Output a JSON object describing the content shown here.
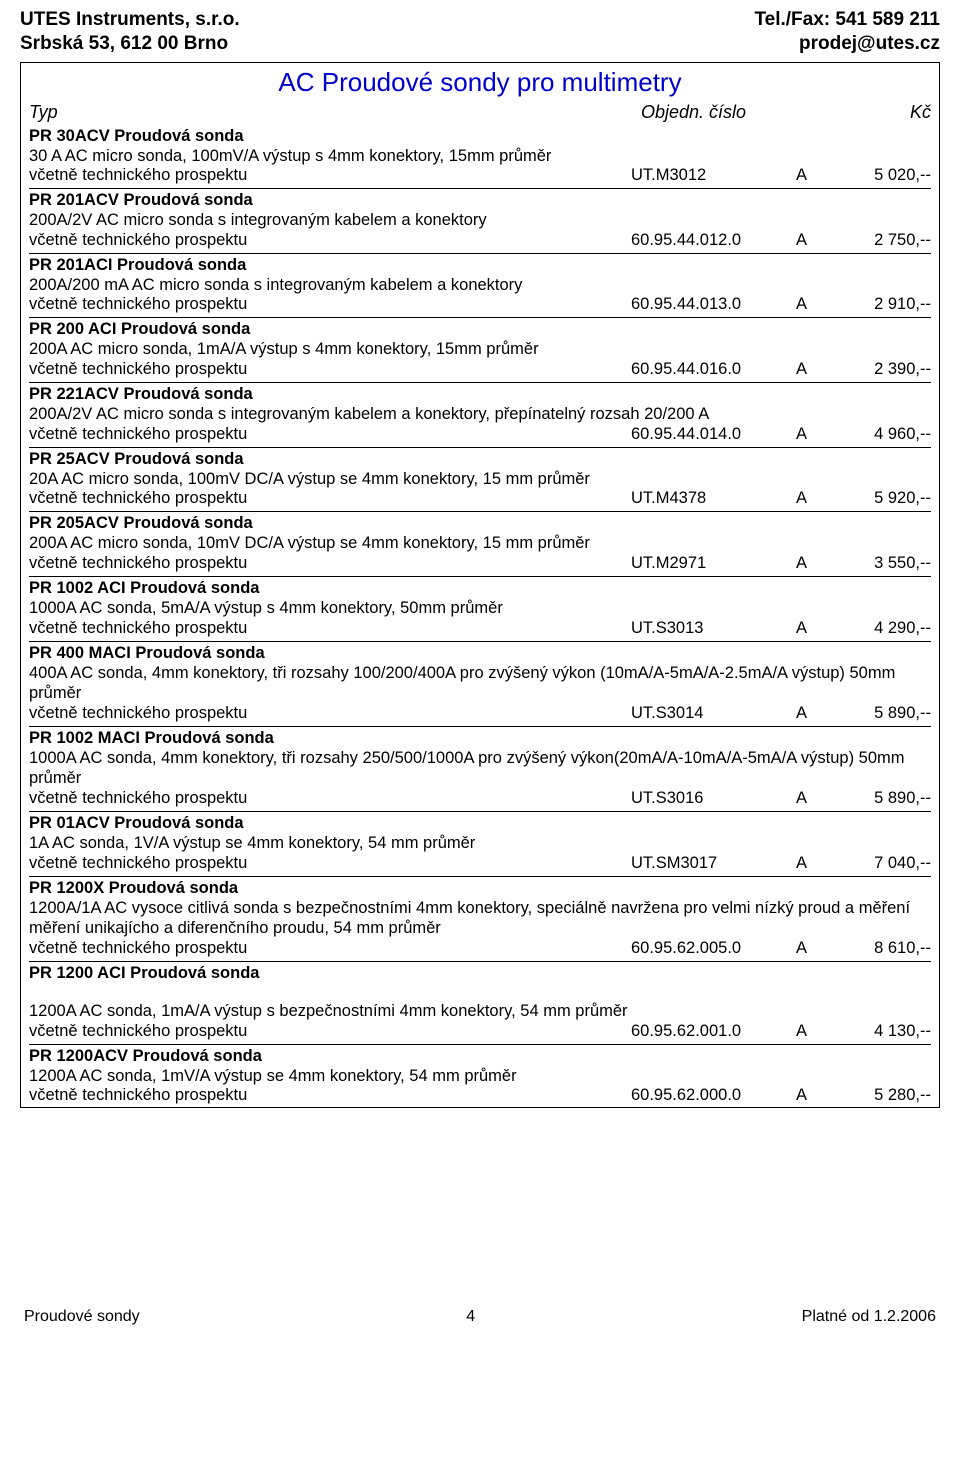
{
  "header": {
    "company_name": "UTES Instruments, s.r.o.",
    "company_addr": "Srbská 53, 612 00 Brno",
    "tel_label": "Tel./Fax: 541 589 211",
    "email": "prodej@utes.cz"
  },
  "title": "AC Proudové sondy pro multimetry",
  "columns": {
    "typ": "Typ",
    "obj": "Objedn. číslo",
    "kc": "Kč"
  },
  "note_text": "včetně technického prospektu",
  "products": [
    {
      "name": "PR 30ACV Proudová sonda",
      "desc": "30 A AC micro sonda, 100mV/A výstup s 4mm konektory, 15mm průměr",
      "obj": "UT.M3012",
      "stock": "A",
      "price": "5 020,--"
    },
    {
      "name": "PR 201ACV Proudová sonda",
      "desc": "200A/2V AC micro sonda s integrovaným kabelem a konektory",
      "obj": "60.95.44.012.0",
      "stock": "A",
      "price": "2 750,--"
    },
    {
      "name": "PR 201ACI Proudová sonda",
      "desc": "200A/200 mA AC micro sonda s integrovaným kabelem a konektory",
      "obj": "60.95.44.013.0",
      "stock": "A",
      "price": "2 910,--"
    },
    {
      "name": "PR 200 ACI Proudová sonda",
      "desc": "200A AC micro sonda, 1mA/A výstup s 4mm konektory, 15mm průměr",
      "obj": "60.95.44.016.0",
      "stock": "A",
      "price": "2 390,--"
    },
    {
      "name": "PR 221ACV Proudová sonda",
      "desc": "200A/2V AC micro sonda s integrovaným kabelem a konektory, přepínatelný rozsah 20/200 A",
      "obj": "60.95.44.014.0",
      "stock": "A",
      "price": "4 960,--"
    },
    {
      "name": "PR 25ACV Proudová sonda",
      "desc": "20A AC micro sonda, 100mV DC/A výstup se 4mm konektory, 15 mm průměr",
      "obj": "UT.M4378",
      "stock": "A",
      "price": "5 920,--"
    },
    {
      "name": "PR 205ACV Proudová sonda",
      "desc": "200A AC micro sonda, 10mV DC/A výstup se 4mm konektory, 15 mm průměr",
      "obj": "UT.M2971",
      "stock": "A",
      "price": "3 550,--"
    },
    {
      "name": "PR 1002 ACI Proudová sonda",
      "desc": "1000A AC sonda, 5mA/A výstup s 4mm konektory, 50mm průměr",
      "obj": "UT.S3013",
      "stock": "A",
      "price": "4 290,--"
    },
    {
      "name": "PR 400 MACI Proudová sonda",
      "desc": "400A AC sonda, 4mm konektory, tři rozsahy 100/200/400A pro zvýšený výkon (10mA/A-5mA/A-2.5mA/A výstup) 50mm průměr",
      "obj": "UT.S3014",
      "stock": "A",
      "price": "5 890,--"
    },
    {
      "name": "PR 1002 MACI Proudová sonda",
      "desc": "1000A AC sonda, 4mm konektory, tři rozsahy 250/500/1000A pro zvýšený výkon(20mA/A-10mA/A-5mA/A výstup) 50mm průměr",
      "obj": "UT.S3016",
      "stock": "A",
      "price": "5 890,--"
    },
    {
      "name": "PR 01ACV Proudová sonda",
      "desc": "1A AC sonda, 1V/A výstup se 4mm konektory, 54 mm průměr",
      "obj": "UT.SM3017",
      "stock": "A",
      "price": "7 040,--"
    },
    {
      "name": "PR 1200X Proudová sonda",
      "desc": "1200A/1A AC vysoce citlivá sonda s bezpečnostními 4mm konektory, speciálně navržena pro velmi nízký proud a měření měření unikajícho a diferenčního proudu, 54 mm průměr",
      "obj": "60.95.62.005.0",
      "stock": "A",
      "price": "8 610,--"
    },
    {
      "name": "PR 1200 ACI Proudová sonda",
      "desc": "",
      "desc2": "1200A AC sonda, 1mA/A výstup s bezpečnostními 4mm konektory, 54 mm průměr",
      "obj": "60.95.62.001.0",
      "stock": "A",
      "price": "4 130,--",
      "gap_before_desc2": true
    },
    {
      "name": "PR 1200ACV Proudová sonda",
      "desc": "1200A AC sonda, 1mV/A výstup se 4mm konektory, 54 mm průměr",
      "obj": "60.95.62.000.0",
      "stock": "A",
      "price": "5 280,--",
      "last": true
    }
  ],
  "footer": {
    "left": "Proudové sondy",
    "page": "4",
    "right": "Platné od 1.2.2006"
  },
  "style": {
    "title_color": "#0000cc",
    "text_color": "#000000",
    "background": "#ffffff",
    "font_family": "Arial, Helvetica, sans-serif"
  }
}
